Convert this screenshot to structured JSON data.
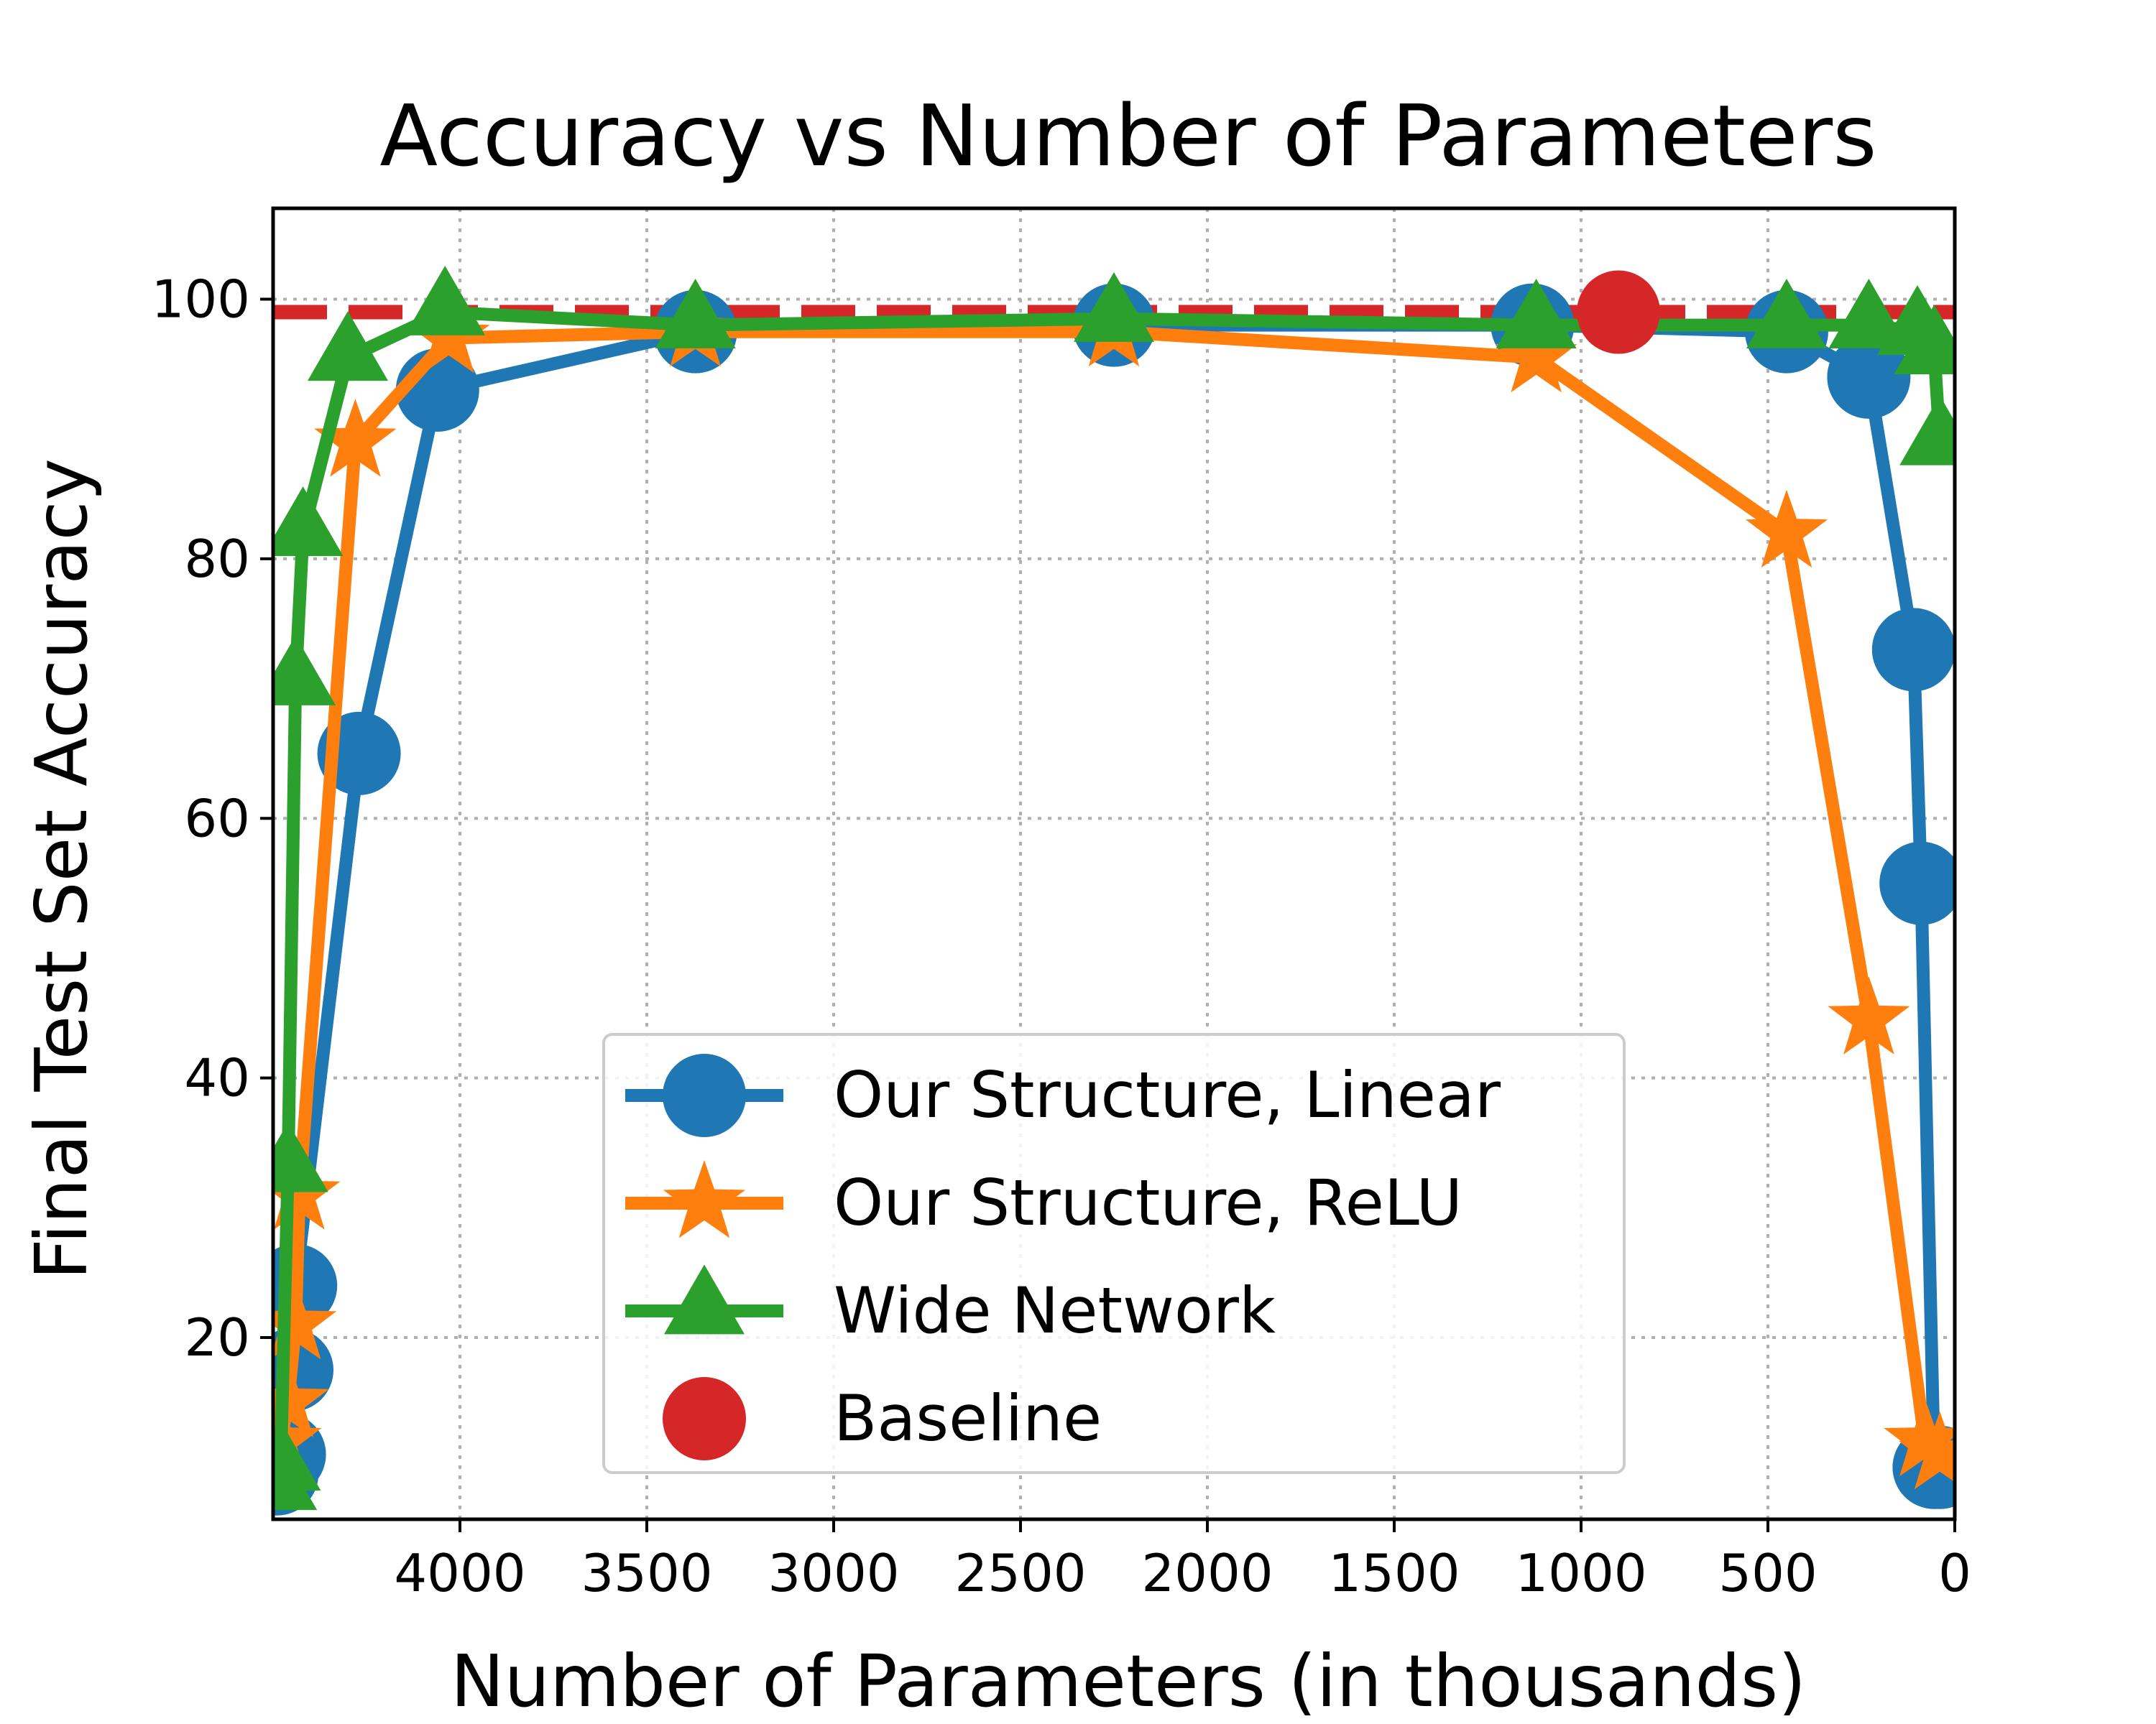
{
  "chart_data": {
    "type": "line",
    "title": "Accuracy vs Number of Parameters",
    "xlabel": "Number of Parameters (in thousands)",
    "ylabel": "Final Test Set Accuracy",
    "xlim": [
      4500,
      0
    ],
    "ylim": [
      6,
      107
    ],
    "x_reversed": true,
    "grid": true,
    "x_ticks": [
      4000,
      3500,
      3000,
      2500,
      2000,
      1500,
      1000,
      500,
      0
    ],
    "y_ticks": [
      20,
      40,
      60,
      80,
      100
    ],
    "legend_position": "lower-center",
    "baseline_line": {
      "y": 99,
      "color": "#d62728",
      "style": "dashed"
    },
    "series": [
      {
        "name": "Our Structure, Linear",
        "marker": "circle",
        "color": "#1f77b4",
        "x": [
          4490,
          4470,
          4450,
          4440,
          4270,
          4060,
          3370,
          2250,
          1130,
          450,
          230,
          110,
          90,
          55,
          40
        ],
        "y": [
          9.5,
          11,
          17.5,
          24,
          65,
          93,
          97.5,
          98,
          98,
          97.5,
          94,
          73,
          55,
          10,
          10
        ]
      },
      {
        "name": "Our Structure, ReLU",
        "marker": "star",
        "color": "#ff7f0e",
        "x": [
          4480,
          4460,
          4440,
          4430,
          4280,
          4030,
          3370,
          2250,
          1120,
          450,
          230,
          80,
          40
        ],
        "y": [
          12,
          15,
          21,
          31,
          89,
          97,
          97.5,
          97.5,
          95.5,
          82,
          44.5,
          12,
          11
        ]
      },
      {
        "name": "Wide Network",
        "marker": "triangle",
        "color": "#2ca02c",
        "x": [
          4490,
          4480,
          4460,
          4440,
          4420,
          4300,
          4040,
          3370,
          2250,
          1120,
          450,
          230,
          100,
          55,
          40
        ],
        "y": [
          8.5,
          10,
          33,
          70.5,
          82,
          95.5,
          99,
          98,
          98.5,
          98,
          98,
          98,
          97.5,
          96,
          89
        ]
      },
      {
        "name": "Baseline",
        "marker": "circle",
        "color": "#d62728",
        "x": [
          900
        ],
        "y": [
          99
        ]
      }
    ]
  }
}
